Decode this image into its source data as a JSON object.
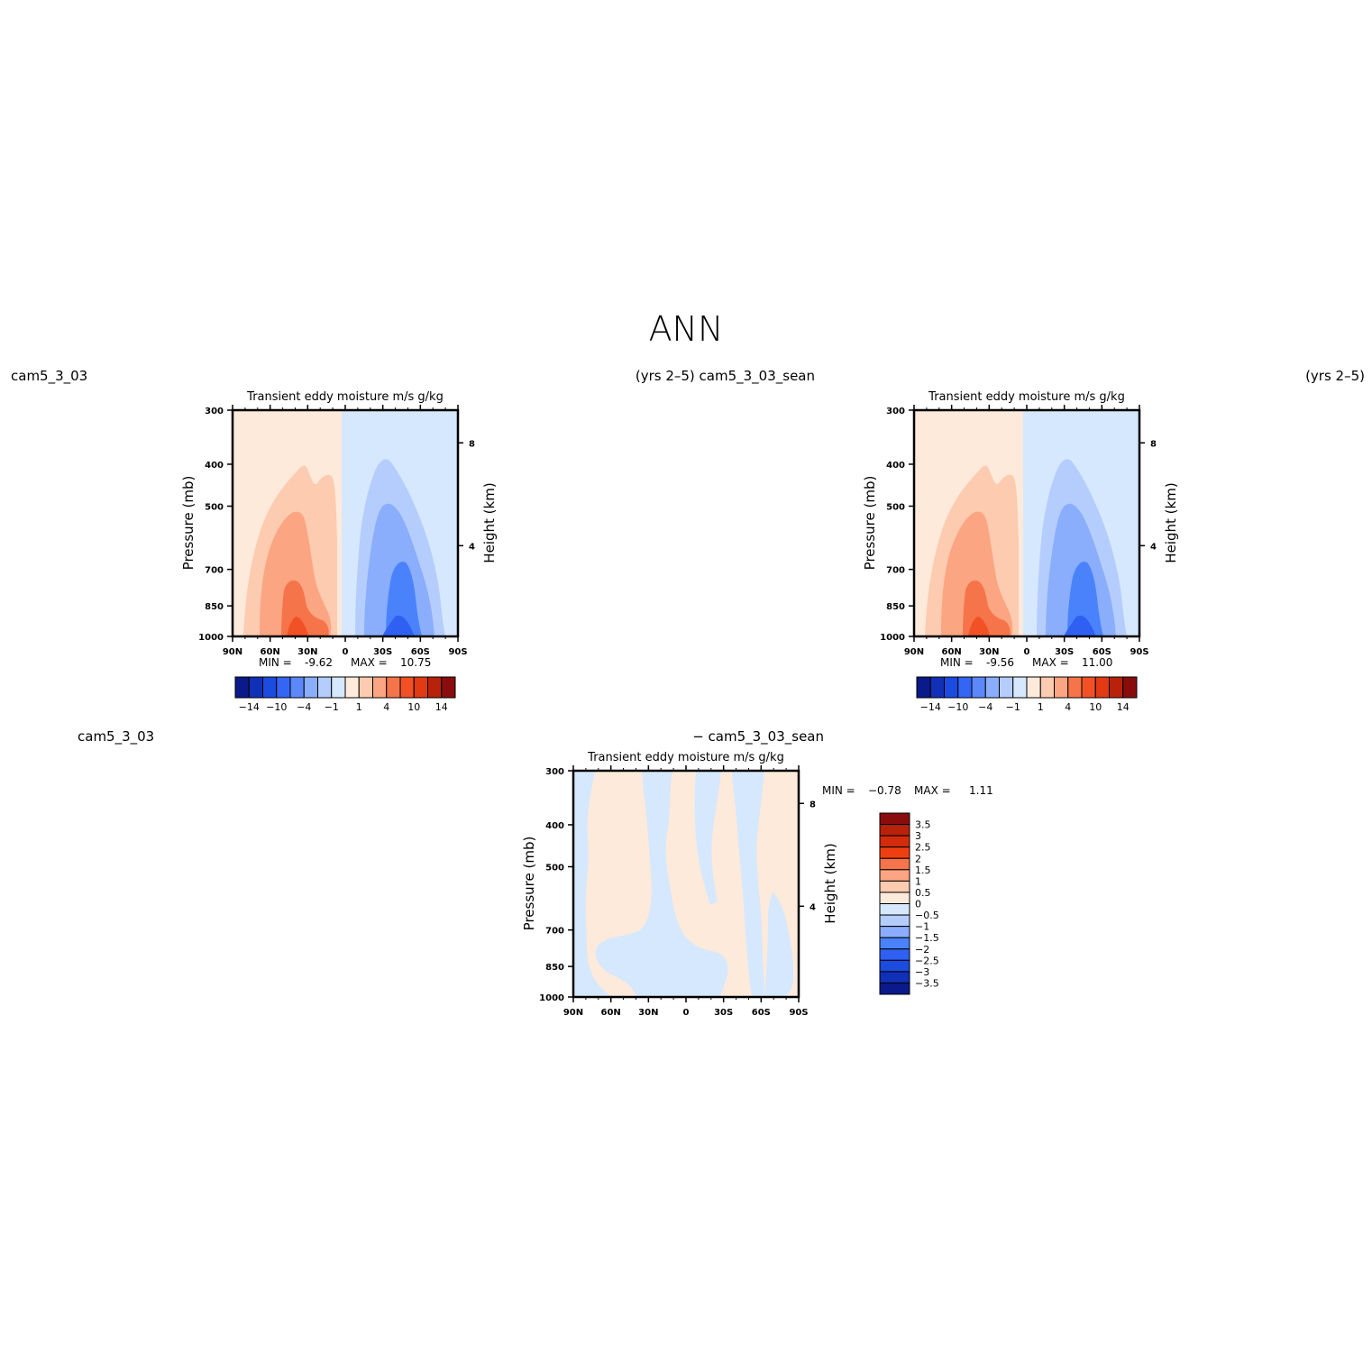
{
  "figure_title": "ANN",
  "colors": {
    "neg_fill_light": "#d6e8fd",
    "pos_fill_light": "#feeadb",
    "pos_2": "#fdcbb0",
    "pos_3": "#fba582",
    "pos_4": "#f6744a",
    "pos_5": "#f25125",
    "neg_2": "#b5cdfd",
    "neg_3": "#8aaefc",
    "neg_4": "#4a82fb",
    "neg_5": "#2f60f2"
  },
  "chart_data": [
    {
      "id": "top-left",
      "type": "heatmap",
      "case_label": "cam5_3_03",
      "years_label": "(yrs 2–5) cam5_3_03_sean",
      "title": "Transient  eddy  moisture m/s  g/kg",
      "ylabel": "Pressure  (mb)",
      "ylabel_right": "Height  (km)",
      "xlabel": "",
      "xticks": [
        "90N",
        "60N",
        "30N",
        "0",
        "30S",
        "60S",
        "90S"
      ],
      "x_range": [
        90,
        -90
      ],
      "yticks": [
        300,
        400,
        500,
        700,
        850,
        1000
      ],
      "ylim": [
        300,
        1000
      ],
      "right_ticks": [
        "8",
        "4"
      ],
      "min_label": "MIN =",
      "min_value": "-9.62",
      "max_label": "MAX =",
      "max_value": "10.75",
      "colorbar_tick_labels": [
        "−14",
        "−10",
        "−4",
        "−1",
        "1",
        "4",
        "10",
        "14"
      ],
      "colorbar_levels": [
        -14,
        -12,
        -10,
        -7,
        -4,
        -2,
        -1,
        0,
        1,
        2,
        4,
        7,
        10,
        12,
        14
      ]
    },
    {
      "id": "top-right",
      "type": "heatmap",
      "case_label": "",
      "years_label": "(yrs 2–5)",
      "title": "Transient  eddy  moisture m/s  g/kg",
      "ylabel": "Pressure  (mb)",
      "ylabel_right": "Height  (km)",
      "xlabel": "",
      "xticks": [
        "90N",
        "60N",
        "30N",
        "0",
        "30S",
        "60S",
        "90S"
      ],
      "x_range": [
        90,
        -90
      ],
      "yticks": [
        300,
        400,
        500,
        700,
        850,
        1000
      ],
      "ylim": [
        300,
        1000
      ],
      "right_ticks": [
        "8",
        "4"
      ],
      "min_label": "MIN =",
      "min_value": "-9.56",
      "max_label": "MAX =",
      "max_value": "11.00",
      "colorbar_tick_labels": [
        "−14",
        "−10",
        "−4",
        "−1",
        "1",
        "4",
        "10",
        "14"
      ],
      "colorbar_levels": [
        -14,
        -12,
        -10,
        -7,
        -4,
        -2,
        -1,
        0,
        1,
        2,
        4,
        7,
        10,
        12,
        14
      ]
    },
    {
      "id": "bottom-diff",
      "type": "heatmap",
      "case_label": "cam5_3_03",
      "diff_label": "− cam5_3_03_sean",
      "title": "Transient  eddy  moisture m/s  g/kg",
      "ylabel": "Pressure  (mb)",
      "ylabel_right": "Height  (km)",
      "xlabel": "",
      "xticks": [
        "90N",
        "60N",
        "30N",
        "0",
        "30S",
        "60S",
        "90S"
      ],
      "x_range": [
        90,
        -90
      ],
      "yticks": [
        300,
        400,
        500,
        700,
        850,
        1000
      ],
      "ylim": [
        300,
        1000
      ],
      "right_ticks": [
        "8",
        "4"
      ],
      "min_label": "MIN =",
      "min_value": "−0.78",
      "max_label": "MAX =",
      "max_value": "1.11",
      "colorbar_tick_labels": [
        "3.5",
        "3",
        "2.5",
        "2",
        "1.5",
        "1",
        "0.5",
        "0",
        "−0.5",
        "−1",
        "−1.5",
        "−2",
        "−2.5",
        "−3",
        "−3.5"
      ],
      "colorbar_levels": [
        3.5,
        3,
        2.5,
        2,
        1.5,
        1,
        0.5,
        0,
        -0.5,
        -1,
        -1.5,
        -2,
        -2.5,
        -3,
        -3.5
      ]
    }
  ],
  "colorbar_colors_horizontal": [
    "#0a1a8a",
    "#1030b8",
    "#1c4be0",
    "#3466f5",
    "#5c88fb",
    "#8aaefc",
    "#b5cdfd",
    "#d6e8fd",
    "#feeadb",
    "#fdcbb0",
    "#fba582",
    "#f6744a",
    "#f25125",
    "#e23a12",
    "#b8220a",
    "#8a0d0d"
  ],
  "colorbar_colors_vertical": [
    "#8a0d0d",
    "#b8220a",
    "#d22c0c",
    "#ee3f12",
    "#f6744a",
    "#fba582",
    "#fdcbb0",
    "#feeadb",
    "#d6e8fd",
    "#b5cdfd",
    "#8aaefc",
    "#4a82fb",
    "#2f60f2",
    "#1c4be0",
    "#1030b8",
    "#0a1a8a"
  ]
}
